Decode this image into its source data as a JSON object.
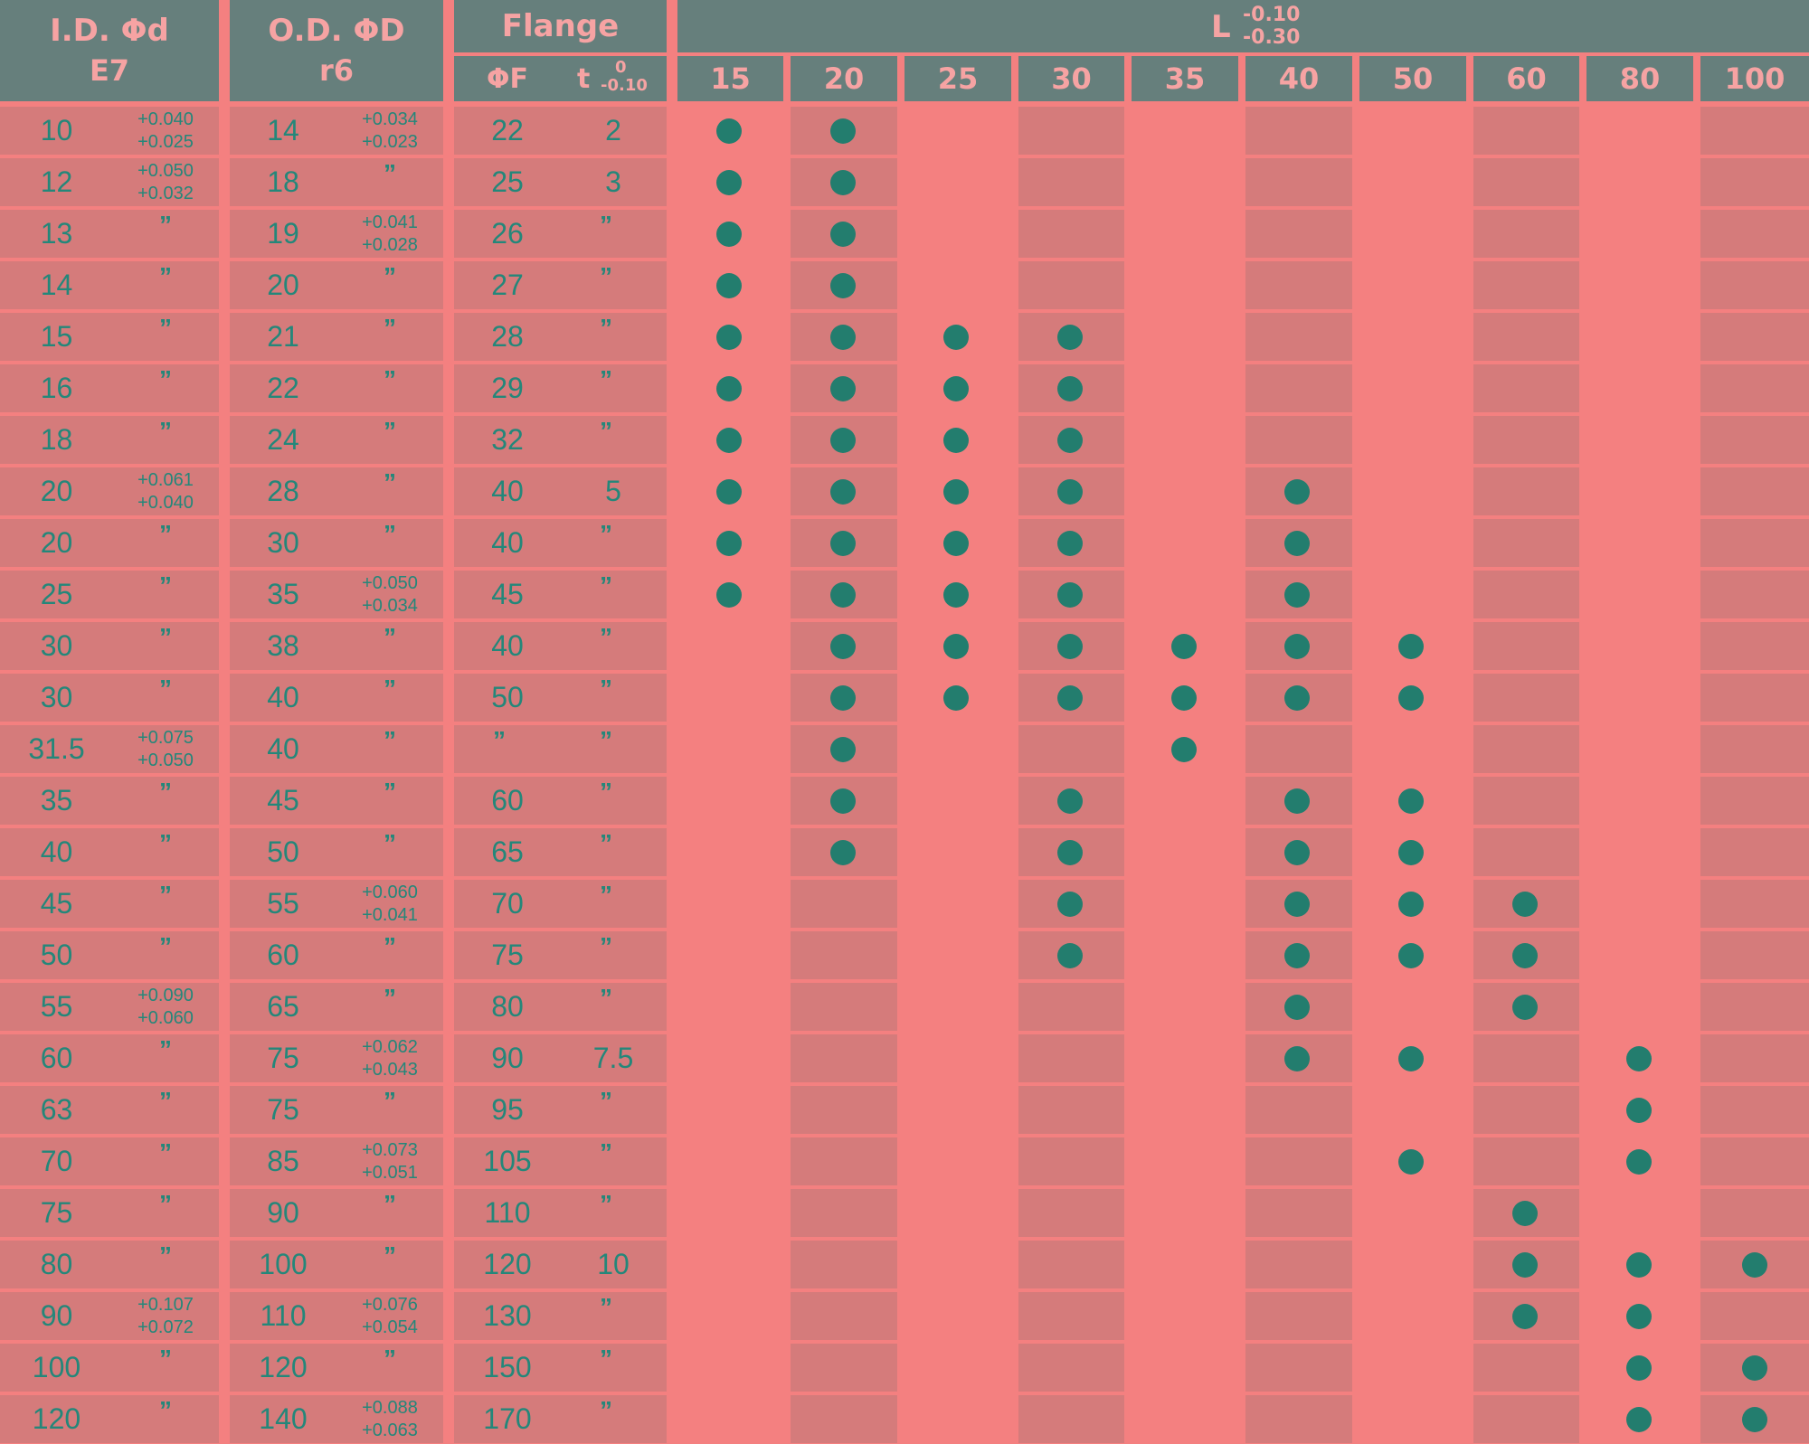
{
  "header": {
    "id": {
      "title": "I.D.  Φd",
      "grade": "E7"
    },
    "od": {
      "title": "O.D.  ΦD",
      "grade": "r6"
    },
    "flange": {
      "title": "Flange",
      "f_label": "ΦF",
      "t_label": "t",
      "t_tol_upper": "0",
      "t_tol_lower": "-0.10"
    },
    "length": {
      "title": "L",
      "tol_upper": "-0.10",
      "tol_lower": "-0.30"
    },
    "lengths": [
      "15",
      "20",
      "25",
      "30",
      "35",
      "40",
      "50",
      "60",
      "80",
      "100"
    ]
  },
  "ditto_mark": "”",
  "rows": [
    {
      "id": "10",
      "id_tol": [
        "+0.040",
        "+0.025"
      ],
      "od": "14",
      "od_tol": [
        "+0.034",
        "+0.023"
      ],
      "f": "22",
      "t": "2",
      "avail": [
        0,
        1
      ]
    },
    {
      "id": "12",
      "id_tol": [
        "+0.050",
        "+0.032"
      ],
      "od": "18",
      "od_tol": null,
      "f": "25",
      "t": "3",
      "avail": [
        0,
        1
      ]
    },
    {
      "id": "13",
      "id_tol": null,
      "od": "19",
      "od_tol": [
        "+0.041",
        "+0.028"
      ],
      "f": "26",
      "t": null,
      "avail": [
        0,
        1
      ]
    },
    {
      "id": "14",
      "id_tol": null,
      "od": "20",
      "od_tol": null,
      "f": "27",
      "t": null,
      "avail": [
        0,
        1
      ]
    },
    {
      "id": "15",
      "id_tol": null,
      "od": "21",
      "od_tol": null,
      "f": "28",
      "t": null,
      "avail": [
        0,
        1,
        2,
        3
      ]
    },
    {
      "id": "16",
      "id_tol": null,
      "od": "22",
      "od_tol": null,
      "f": "29",
      "t": null,
      "avail": [
        0,
        1,
        2,
        3
      ]
    },
    {
      "id": "18",
      "id_tol": null,
      "od": "24",
      "od_tol": null,
      "f": "32",
      "t": null,
      "avail": [
        0,
        1,
        2,
        3
      ]
    },
    {
      "id": "20",
      "id_tol": [
        "+0.061",
        "+0.040"
      ],
      "od": "28",
      "od_tol": null,
      "f": "40",
      "t": "5",
      "avail": [
        0,
        1,
        2,
        3,
        5
      ]
    },
    {
      "id": "20",
      "id_tol": null,
      "od": "30",
      "od_tol": null,
      "f": "40",
      "t": null,
      "avail": [
        0,
        1,
        2,
        3,
        5
      ]
    },
    {
      "id": "25",
      "id_tol": null,
      "od": "35",
      "od_tol": [
        "+0.050",
        "+0.034"
      ],
      "f": "45",
      "t": null,
      "avail": [
        0,
        1,
        2,
        3,
        5
      ]
    },
    {
      "id": "30",
      "id_tol": null,
      "od": "38",
      "od_tol": null,
      "f": "40",
      "t": null,
      "avail": [
        1,
        2,
        3,
        4,
        5,
        6
      ]
    },
    {
      "id": "30",
      "id_tol": null,
      "od": "40",
      "od_tol": null,
      "f": "50",
      "t": null,
      "avail": [
        1,
        2,
        3,
        4,
        5,
        6
      ]
    },
    {
      "id": "31.5",
      "id_tol": [
        "+0.075",
        "+0.050"
      ],
      "od": "40",
      "od_tol": null,
      "f": null,
      "t": null,
      "avail": [
        1,
        4
      ]
    },
    {
      "id": "35",
      "id_tol": null,
      "od": "45",
      "od_tol": null,
      "f": "60",
      "t": null,
      "avail": [
        1,
        3,
        5,
        6
      ]
    },
    {
      "id": "40",
      "id_tol": null,
      "od": "50",
      "od_tol": null,
      "f": "65",
      "t": null,
      "avail": [
        1,
        3,
        5,
        6
      ]
    },
    {
      "id": "45",
      "id_tol": null,
      "od": "55",
      "od_tol": [
        "+0.060",
        "+0.041"
      ],
      "f": "70",
      "t": null,
      "avail": [
        3,
        5,
        6,
        7
      ]
    },
    {
      "id": "50",
      "id_tol": null,
      "od": "60",
      "od_tol": null,
      "f": "75",
      "t": null,
      "avail": [
        3,
        5,
        6,
        7
      ]
    },
    {
      "id": "55",
      "id_tol": [
        "+0.090",
        "+0.060"
      ],
      "od": "65",
      "od_tol": null,
      "f": "80",
      "t": null,
      "avail": [
        5,
        7
      ]
    },
    {
      "id": "60",
      "id_tol": null,
      "od": "75",
      "od_tol": [
        "+0.062",
        "+0.043"
      ],
      "f": "90",
      "t": "7.5",
      "avail": [
        5,
        6,
        8
      ]
    },
    {
      "id": "63",
      "id_tol": null,
      "od": "75",
      "od_tol": null,
      "f": "95",
      "t": null,
      "avail": [
        8
      ]
    },
    {
      "id": "70",
      "id_tol": null,
      "od": "85",
      "od_tol": [
        "+0.073",
        "+0.051"
      ],
      "f": "105",
      "t": null,
      "avail": [
        6,
        8
      ]
    },
    {
      "id": "75",
      "id_tol": null,
      "od": "90",
      "od_tol": null,
      "f": "110",
      "t": null,
      "avail": [
        7
      ]
    },
    {
      "id": "80",
      "id_tol": null,
      "od": "100",
      "od_tol": null,
      "f": "120",
      "t": "10",
      "avail": [
        7,
        8,
        9
      ]
    },
    {
      "id": "90",
      "id_tol": [
        "+0.107",
        "+0.072"
      ],
      "od": "110",
      "od_tol": [
        "+0.076",
        "+0.054"
      ],
      "f": "130",
      "t": null,
      "avail": [
        7,
        8
      ]
    },
    {
      "id": "100",
      "id_tol": null,
      "od": "120",
      "od_tol": null,
      "f": "150",
      "t": null,
      "avail": [
        8,
        9
      ]
    },
    {
      "id": "120",
      "id_tol": null,
      "od": "140",
      "od_tol": [
        "+0.088",
        "+0.063"
      ],
      "f": "170",
      "t": null,
      "avail": [
        8,
        9
      ]
    }
  ]
}
